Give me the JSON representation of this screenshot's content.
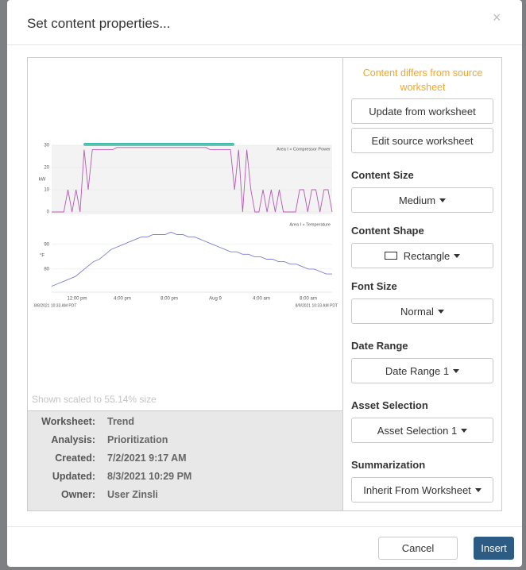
{
  "dialog": {
    "title": "Set content properties...",
    "close": "×"
  },
  "preview": {
    "chart": {
      "power": {
        "title": "Area I » Compressor Power",
        "unit": "kW",
        "ylim": [
          0,
          30
        ],
        "yticks": [
          0,
          10,
          20,
          30
        ],
        "values": [
          0,
          0,
          0,
          0,
          10,
          0,
          10,
          0,
          28,
          10,
          28,
          28,
          28,
          28,
          28,
          28,
          29,
          29,
          29,
          29,
          29,
          29,
          29,
          29,
          29,
          29,
          29,
          29,
          29,
          29,
          29,
          29,
          29,
          29,
          29,
          29,
          29,
          29,
          29,
          28,
          28,
          28,
          28,
          28,
          28,
          10,
          28,
          0,
          28,
          10,
          0,
          0,
          10,
          0,
          10,
          0,
          10,
          0,
          0,
          0,
          0,
          10,
          10,
          0,
          10,
          10,
          0,
          10,
          10,
          0
        ]
      },
      "temperature": {
        "title": "Area I » Temperature",
        "unit": "°F",
        "ylim": [
          70.6,
          99
        ],
        "yticks": [
          80,
          90
        ],
        "values": [
          73,
          74,
          75,
          76,
          77,
          79,
          81,
          83,
          84,
          86,
          88,
          89,
          90,
          91,
          92,
          93,
          93,
          94,
          94,
          94,
          95,
          94,
          94,
          93,
          93,
          92,
          91,
          90,
          89,
          88,
          87,
          87,
          86,
          86,
          85,
          85,
          84,
          84,
          83,
          83,
          82,
          82,
          81,
          80,
          80,
          79,
          78,
          78
        ]
      },
      "xticks": [
        "12:00 pm",
        "4:00 pm",
        "8:00 pm",
        "Aug 9",
        "4:00 am",
        "8:00 am"
      ],
      "start": "8/8/2021 10:33 AM PDT",
      "end": "8/9/2021 10:33 AM PDT"
    },
    "scale_note": "Shown scaled to 55.14% size"
  },
  "info": {
    "rows": [
      [
        "Worksheet:",
        "Trend"
      ],
      [
        "Analysis:",
        "Prioritization"
      ],
      [
        "Created:",
        "7/2/2021 9:17 AM"
      ],
      [
        "Updated:",
        "8/3/2021 10:29 PM"
      ],
      [
        "Owner:",
        "User Zinsli"
      ]
    ]
  },
  "panel": {
    "warning": "Content differs from source worksheet",
    "buttons": [
      "Update from worksheet",
      "Edit source worksheet"
    ],
    "fields": [
      {
        "label": "Content Size",
        "value": "Medium"
      },
      {
        "label": "Content Shape",
        "value": "Rectangle"
      },
      {
        "label": "Font Size",
        "value": "Normal"
      },
      {
        "label": "Date Range",
        "value": "Date Range 1"
      },
      {
        "label": "Asset Selection",
        "value": "Asset Selection 1"
      },
      {
        "label": "Summarization",
        "value": "Inherit From Worksheet"
      }
    ]
  },
  "footer": {
    "cancel": "Cancel",
    "insert": "Insert"
  }
}
